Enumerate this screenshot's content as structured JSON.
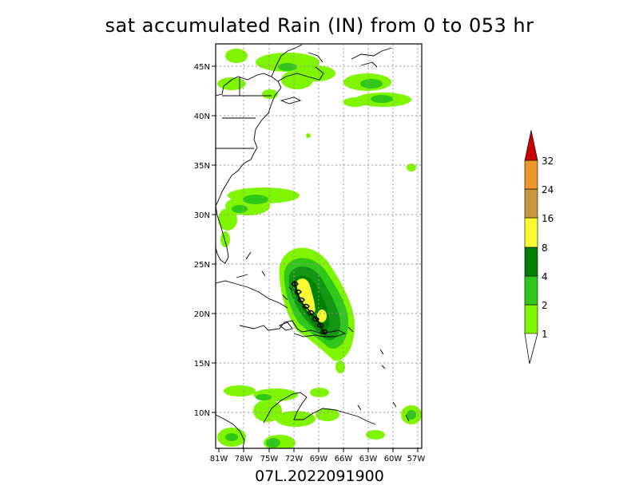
{
  "title": "sat accumulated Rain (IN) from 0 to 053 hr",
  "storm_id": "07L.2022091900",
  "lat_labels": [
    "45N",
    "40N",
    "35N",
    "30N",
    "25N",
    "20N",
    "15N",
    "10N"
  ],
  "lon_labels": [
    "81W",
    "78W",
    "75W",
    "72W",
    "69W",
    "66W",
    "63W",
    "60W",
    "57W"
  ],
  "colorbar": {
    "levels": [
      "1",
      "2",
      "4",
      "8",
      "16",
      "24",
      "32"
    ],
    "colors": [
      "#7ff500",
      "#2ec71a",
      "#149614",
      "#008200",
      "#fafa32",
      "#c8963c",
      "#f09628",
      "#c80000"
    ]
  },
  "chart_data": {
    "type": "heatmap",
    "title": "sat accumulated Rain (IN) from 0 to 053 hr",
    "xlabel": "",
    "ylabel": "",
    "x_ticks": [
      "81W",
      "78W",
      "75W",
      "72W",
      "69W",
      "66W",
      "63W",
      "60W",
      "57W"
    ],
    "y_ticks": [
      "45N",
      "40N",
      "35N",
      "30N",
      "25N",
      "20N",
      "15N",
      "10N"
    ],
    "xlim": [
      -81,
      -57
    ],
    "ylim": [
      6.5,
      47.5
    ],
    "grid": true,
    "colorbar_levels": [
      1,
      2,
      4,
      8,
      16,
      24,
      32
    ],
    "units": "IN",
    "max_accumulation_region": "8-16"
  }
}
